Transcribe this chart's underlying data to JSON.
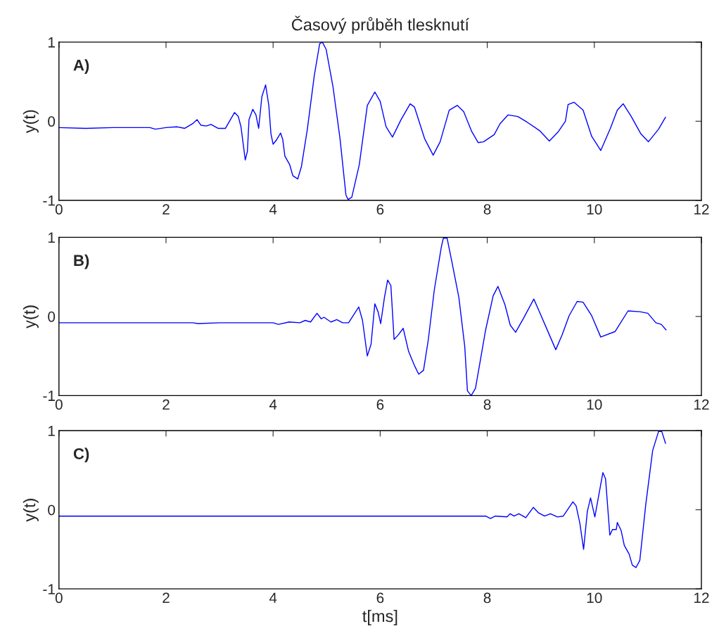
{
  "chart_data": [
    {
      "type": "line",
      "title": "Časový průběh tlesknutí",
      "ylabel": "y(t)",
      "annotations": [
        "A)"
      ],
      "xlim": [
        0,
        12
      ],
      "xticks": [
        0,
        2,
        4,
        6,
        8,
        10,
        12
      ],
      "ylim": [
        -1,
        1
      ],
      "yticks": [
        -1,
        0,
        1
      ],
      "grid": false,
      "legend": false,
      "marker": "none",
      "line_style": "solid",
      "series": [
        {
          "color": "#0000ff",
          "x": [
            0,
            0.5,
            1.0,
            1.7,
            1.8,
            2.0,
            2.2,
            2.35,
            2.5,
            2.58,
            2.65,
            2.75,
            2.84,
            2.97,
            3.11,
            3.28,
            3.35,
            3.4,
            3.48,
            3.52,
            3.55,
            3.62,
            3.68,
            3.73,
            3.79,
            3.86,
            3.92,
            3.96,
            4.0,
            4.07,
            4.14,
            4.18,
            4.22,
            4.31,
            4.37,
            4.46,
            4.53,
            4.64,
            4.77,
            4.87,
            4.92,
            4.99,
            5.12,
            5.25,
            5.36,
            5.4,
            5.47,
            5.61,
            5.76,
            5.9,
            6.0,
            6.11,
            6.23,
            6.39,
            6.56,
            6.64,
            6.83,
            6.99,
            7.12,
            7.29,
            7.44,
            7.56,
            7.71,
            7.83,
            7.93,
            8.13,
            8.24,
            8.39,
            8.57,
            8.74,
            8.98,
            9.16,
            9.33,
            9.46,
            9.51,
            9.62,
            9.79,
            9.95,
            10.12,
            10.3,
            10.43,
            10.54,
            10.69,
            10.87,
            11.01,
            11.2,
            11.33
          ],
          "values": [
            -0.08,
            -0.09,
            -0.08,
            -0.08,
            -0.1,
            -0.08,
            -0.07,
            -0.09,
            -0.03,
            0.02,
            -0.05,
            -0.06,
            -0.04,
            -0.09,
            -0.09,
            0.11,
            0.06,
            -0.07,
            -0.49,
            -0.38,
            0.02,
            0.15,
            0.08,
            -0.09,
            0.31,
            0.46,
            0.2,
            -0.16,
            -0.29,
            -0.23,
            -0.15,
            -0.23,
            -0.44,
            -0.55,
            -0.69,
            -0.73,
            -0.57,
            -0.1,
            0.58,
            0.98,
            1.0,
            0.91,
            0.43,
            -0.22,
            -0.93,
            -0.99,
            -0.96,
            -0.55,
            0.2,
            0.37,
            0.25,
            -0.07,
            -0.2,
            0.02,
            0.22,
            0.18,
            -0.22,
            -0.43,
            -0.26,
            0.14,
            0.2,
            0.12,
            -0.13,
            -0.27,
            -0.26,
            -0.17,
            -0.03,
            0.08,
            0.06,
            -0.01,
            -0.12,
            -0.25,
            -0.13,
            0.0,
            0.21,
            0.24,
            0.14,
            -0.19,
            -0.37,
            -0.09,
            0.14,
            0.22,
            0.06,
            -0.16,
            -0.26,
            -0.1,
            0.05
          ]
        }
      ]
    },
    {
      "type": "line",
      "ylabel": "y(t)",
      "annotations": [
        "B)"
      ],
      "xlim": [
        0,
        12
      ],
      "xticks": [
        0,
        2,
        4,
        6,
        8,
        10,
        12
      ],
      "ylim": [
        -1,
        1
      ],
      "yticks": [
        -1,
        0,
        1
      ],
      "grid": false,
      "legend": false,
      "marker": "none",
      "line_style": "solid",
      "series": [
        {
          "color": "#0000ff",
          "x": [
            0,
            2.5,
            2.6,
            3.0,
            4.0,
            4.1,
            4.3,
            4.5,
            4.6,
            4.7,
            4.82,
            4.9,
            4.95,
            5.08,
            5.19,
            5.3,
            5.41,
            5.6,
            5.67,
            5.76,
            5.83,
            5.9,
            5.96,
            6.01,
            6.08,
            6.14,
            6.2,
            6.26,
            6.33,
            6.43,
            6.53,
            6.64,
            6.72,
            6.81,
            6.9,
            7.01,
            7.14,
            7.18,
            7.25,
            7.34,
            7.47,
            7.58,
            7.63,
            7.7,
            7.78,
            7.97,
            8.11,
            8.2,
            8.33,
            8.43,
            8.53,
            8.68,
            8.87,
            8.98,
            9.14,
            9.28,
            9.4,
            9.53,
            9.68,
            9.79,
            9.95,
            10.12,
            10.39,
            10.63,
            10.85,
            11.0,
            11.15,
            11.25,
            11.34
          ],
          "values": [
            -0.08,
            -0.08,
            -0.09,
            -0.08,
            -0.08,
            -0.1,
            -0.07,
            -0.08,
            -0.05,
            -0.07,
            0.04,
            -0.03,
            -0.01,
            -0.07,
            -0.04,
            -0.08,
            -0.08,
            0.12,
            -0.05,
            -0.5,
            -0.35,
            0.16,
            0.06,
            -0.09,
            0.24,
            0.46,
            0.39,
            -0.29,
            -0.24,
            -0.15,
            -0.44,
            -0.62,
            -0.73,
            -0.68,
            -0.29,
            0.33,
            0.87,
            0.99,
            0.99,
            0.69,
            0.24,
            -0.38,
            -0.94,
            -1.0,
            -0.91,
            -0.17,
            0.26,
            0.38,
            0.15,
            -0.11,
            -0.2,
            -0.02,
            0.22,
            0.05,
            -0.2,
            -0.42,
            -0.23,
            0.01,
            0.19,
            0.18,
            0.01,
            -0.26,
            -0.19,
            0.07,
            0.06,
            0.04,
            -0.08,
            -0.1,
            -0.17
          ]
        }
      ]
    },
    {
      "type": "line",
      "xlabel": "t[ms]",
      "ylabel": "y(t)",
      "annotations": [
        "C)"
      ],
      "xlim": [
        0,
        12
      ],
      "xticks": [
        0,
        2,
        4,
        6,
        8,
        10,
        12
      ],
      "ylim": [
        -1,
        1
      ],
      "yticks": [
        -1,
        0,
        1
      ],
      "grid": false,
      "legend": false,
      "marker": "none",
      "line_style": "solid",
      "series": [
        {
          "color": "#0000ff",
          "x": [
            0,
            4.0,
            6.0,
            7.0,
            7.97,
            8.06,
            8.15,
            8.37,
            8.43,
            8.5,
            8.59,
            8.72,
            8.86,
            8.96,
            9.07,
            9.18,
            9.31,
            9.42,
            9.6,
            9.66,
            9.73,
            9.8,
            9.87,
            9.93,
            10.01,
            10.16,
            10.21,
            10.29,
            10.34,
            10.41,
            10.43,
            10.5,
            10.56,
            10.65,
            10.71,
            10.78,
            10.85,
            10.96,
            11.09,
            11.2,
            11.26,
            11.33
          ],
          "values": [
            -0.08,
            -0.08,
            -0.08,
            -0.08,
            -0.08,
            -0.11,
            -0.08,
            -0.09,
            -0.05,
            -0.08,
            -0.05,
            -0.1,
            0.03,
            -0.04,
            -0.08,
            -0.05,
            -0.09,
            -0.08,
            0.1,
            0.05,
            -0.17,
            -0.5,
            -0.02,
            0.15,
            -0.09,
            0.47,
            0.39,
            -0.32,
            -0.25,
            -0.25,
            -0.16,
            -0.26,
            -0.45,
            -0.56,
            -0.7,
            -0.73,
            -0.64,
            0.06,
            0.75,
            0.99,
            0.99,
            0.84
          ]
        }
      ]
    }
  ]
}
